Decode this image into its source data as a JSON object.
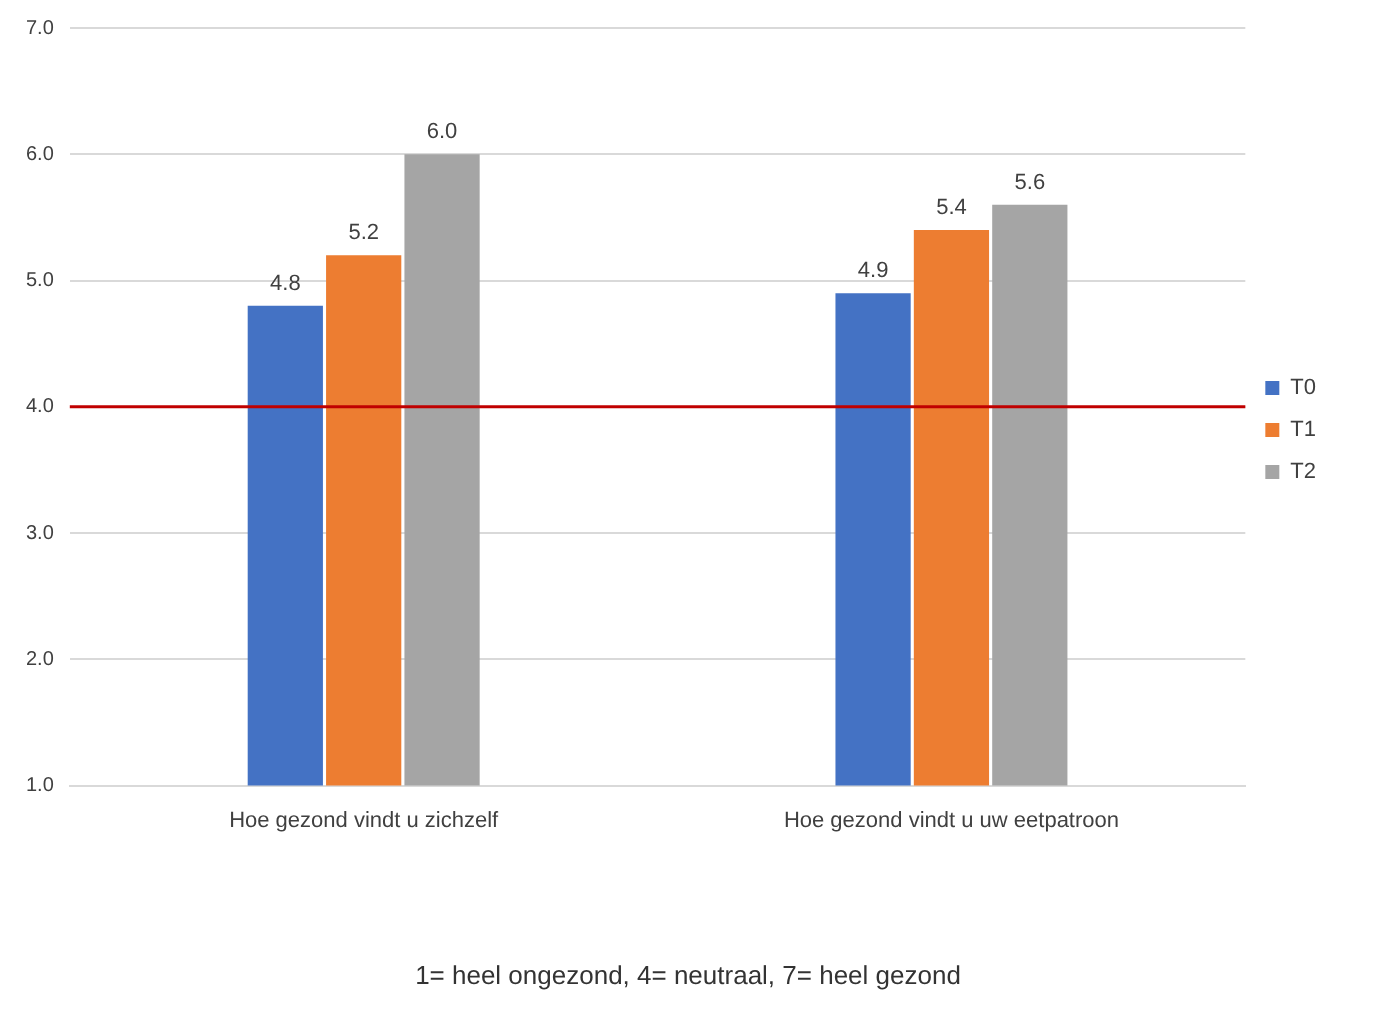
{
  "chart_data": {
    "type": "bar",
    "categories": [
      "Hoe gezond vindt u zichzelf",
      "Hoe gezond vindt u uw eetpatroon"
    ],
    "series": [
      {
        "name": "T0",
        "color": "#4472c4",
        "values": [
          4.8,
          4.9
        ],
        "value_labels": [
          "4.8",
          "4.9"
        ]
      },
      {
        "name": "T1",
        "color": "#ed7d31",
        "values": [
          5.2,
          5.4
        ],
        "value_labels": [
          "5.2",
          "5.4"
        ]
      },
      {
        "name": "T2",
        "color": "#a5a5a5",
        "values": [
          6.0,
          5.6
        ],
        "value_labels": [
          "6.0",
          "5.6"
        ]
      }
    ],
    "ylim": [
      1,
      7
    ],
    "yticks": [
      {
        "value": 1,
        "label": "1.0"
      },
      {
        "value": 2,
        "label": "2.0"
      },
      {
        "value": 3,
        "label": "3.0"
      },
      {
        "value": 4,
        "label": "4.0"
      },
      {
        "value": 5,
        "label": "5.0"
      },
      {
        "value": 6,
        "label": "6.0"
      },
      {
        "value": 7,
        "label": "7.0"
      }
    ],
    "grid": "y",
    "legend": "right",
    "ref_lines": [
      {
        "axis": "y",
        "value": 4,
        "color": "#c00000"
      }
    ],
    "annotations": [
      "1= heel ongezond, 4= neutraal, 7= heel gezond"
    ]
  }
}
